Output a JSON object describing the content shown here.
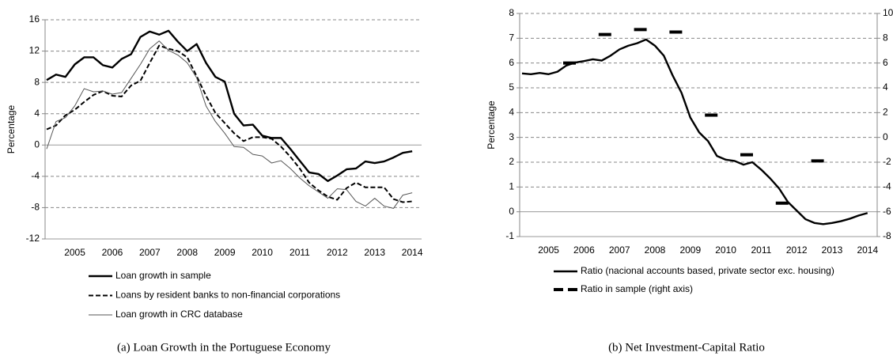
{
  "chart_data": [
    {
      "type": "line",
      "ylabel": "Percentage",
      "categories": [
        null,
        null,
        null,
        "2005",
        null,
        null,
        null,
        "2006",
        null,
        null,
        null,
        "2007",
        null,
        null,
        null,
        "2008",
        null,
        null,
        null,
        "2009",
        null,
        null,
        null,
        "2010",
        null,
        null,
        null,
        "2011",
        null,
        null,
        null,
        "2012",
        null,
        null,
        null,
        "2013",
        null,
        null,
        null,
        "2014"
      ],
      "ylim": [
        -12,
        16
      ],
      "yticks": [
        -12,
        -8,
        -4,
        0,
        4,
        8,
        12,
        16
      ],
      "grid": true,
      "series": [
        {
          "name": "Loan growth in sample",
          "color": "#000000",
          "style": "solid",
          "values": [
            8.3,
            9.0,
            8.7,
            10.3,
            11.2,
            11.2,
            10.2,
            9.9,
            11.0,
            11.6,
            13.8,
            14.5,
            14.1,
            14.6,
            13.2,
            12.0,
            12.9,
            10.5,
            8.7,
            8.1,
            4.0,
            2.5,
            2.6,
            1.2,
            0.9,
            0.9,
            -0.5,
            -2.0,
            -3.5,
            -3.7,
            -4.6,
            -3.9,
            -3.1,
            -3.0,
            -2.1,
            -2.3,
            -2.1,
            -1.6,
            -1.0,
            -0.8
          ]
        },
        {
          "name": "Loans by resident banks to non-financial corporations",
          "color": "#000000",
          "style": "dashed",
          "values": [
            2.0,
            2.5,
            3.8,
            4.5,
            5.5,
            6.4,
            6.9,
            6.3,
            6.2,
            7.6,
            8.2,
            10.5,
            12.7,
            12.3,
            12.0,
            11.2,
            8.8,
            6.3,
            4.1,
            2.8,
            1.5,
            0.5,
            1.0,
            1.0,
            0.8,
            -0.2,
            -1.5,
            -3.0,
            -4.8,
            -5.8,
            -6.6,
            -7.0,
            -5.5,
            -4.8,
            -5.4,
            -5.4,
            -5.4,
            -6.9,
            -7.3,
            -7.2
          ]
        },
        {
          "name": "Loan growth in CRC database",
          "color": "#555555",
          "style": "thin",
          "values": [
            -0.5,
            3.0,
            3.5,
            5.0,
            7.2,
            6.8,
            6.9,
            6.5,
            6.7,
            8.5,
            10.3,
            12.3,
            13.3,
            12.1,
            11.5,
            10.5,
            8.6,
            5.0,
            3.0,
            1.5,
            -0.2,
            -0.3,
            -1.2,
            -1.4,
            -2.3,
            -2.0,
            -3.0,
            -4.2,
            -5.2,
            -6.0,
            -6.8,
            -5.6,
            -5.7,
            -7.2,
            -7.8,
            -6.8,
            -7.8,
            -8.1,
            -6.4,
            -6.1
          ]
        }
      ],
      "caption": "(a) Loan Growth in the Portuguese Economy"
    },
    {
      "type": "line",
      "ylabel": "Percentage",
      "categories": [
        null,
        null,
        null,
        "2005",
        null,
        null,
        null,
        "2006",
        null,
        null,
        null,
        "2007",
        null,
        null,
        null,
        "2008",
        null,
        null,
        null,
        "2009",
        null,
        null,
        null,
        "2010",
        null,
        null,
        null,
        "2011",
        null,
        null,
        null,
        "2012",
        null,
        null,
        null,
        "2013",
        null,
        null,
        null,
        "2014"
      ],
      "ylim": [
        -1,
        8
      ],
      "yticks": [
        -1,
        0,
        1,
        2,
        3,
        4,
        5,
        6,
        7,
        8
      ],
      "y2lim": [
        -8,
        10
      ],
      "y2ticks": [
        -8,
        -6,
        -4,
        -2,
        0,
        2,
        4,
        6,
        8,
        10
      ],
      "grid": true,
      "series": [
        {
          "name": "Ratio (nacional accounts based, private sector exc. housing)",
          "color": "#000000",
          "style": "solid",
          "values": [
            5.58,
            5.55,
            5.6,
            5.55,
            5.65,
            5.9,
            6.02,
            6.08,
            6.15,
            6.1,
            6.3,
            6.55,
            6.7,
            6.8,
            6.95,
            6.7,
            6.3,
            5.5,
            4.8,
            3.8,
            3.2,
            2.85,
            2.25,
            2.1,
            2.05,
            1.9,
            2.0,
            1.7,
            1.35,
            0.95,
            0.4,
            0.05,
            -0.3,
            -0.45,
            -0.5,
            -0.45,
            -0.38,
            -0.28,
            -0.15,
            -0.05
          ]
        },
        {
          "name": "Ratio in sample (right axis)",
          "color": "#000000",
          "style": "markers",
          "axis": "y2",
          "values": [
            null,
            null,
            null,
            null,
            null,
            6.0,
            null,
            null,
            null,
            8.3,
            null,
            null,
            null,
            8.7,
            null,
            null,
            null,
            8.5,
            null,
            null,
            null,
            1.8,
            null,
            null,
            null,
            -1.4,
            null,
            null,
            null,
            -5.3,
            null,
            null,
            null,
            -1.9,
            null,
            null,
            null,
            null,
            null,
            null
          ]
        }
      ],
      "caption": "(b) Net Investment-Capital Ratio"
    }
  ]
}
